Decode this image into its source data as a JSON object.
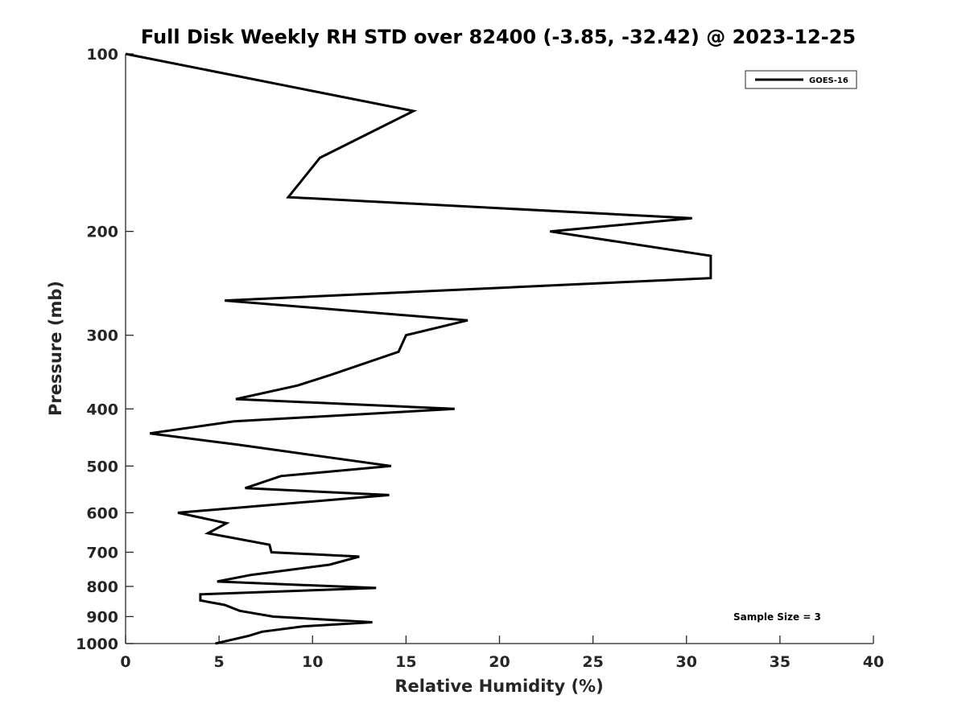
{
  "chart_data": {
    "type": "line",
    "title": "Full Disk Weekly RH STD over 82400 (-3.85, -32.42) @ 2023-12-25",
    "xlabel": "Relative Humidity (%)",
    "ylabel": "Pressure (mb)",
    "xlim": [
      0,
      40
    ],
    "ylim": [
      100,
      1000
    ],
    "y_scale": "log",
    "y_reversed": true,
    "x_ticks": [
      0,
      5,
      10,
      15,
      20,
      25,
      30,
      35,
      40
    ],
    "y_ticks": [
      100,
      200,
      300,
      400,
      500,
      600,
      700,
      800,
      900,
      1000
    ],
    "grid": false,
    "legend_position": "top-right",
    "annotation": "Sample Size = 3",
    "series": [
      {
        "name": "GOES-16",
        "color": "#000000",
        "points": [
          [
            0.0,
            100
          ],
          [
            15.4,
            125
          ],
          [
            10.4,
            150
          ],
          [
            8.7,
            175
          ],
          [
            30.3,
            190
          ],
          [
            22.7,
            200
          ],
          [
            31.3,
            220
          ],
          [
            31.3,
            240
          ],
          [
            5.3,
            262
          ],
          [
            18.3,
            283
          ],
          [
            15.0,
            300
          ],
          [
            14.6,
            320
          ],
          [
            11.0,
            350
          ],
          [
            9.2,
            365
          ],
          [
            5.9,
            385
          ],
          [
            17.6,
            400
          ],
          [
            5.8,
            420
          ],
          [
            1.3,
            440
          ],
          [
            6.0,
            460
          ],
          [
            14.2,
            500
          ],
          [
            8.3,
            520
          ],
          [
            6.4,
            545
          ],
          [
            14.1,
            560
          ],
          [
            2.8,
            600
          ],
          [
            5.4,
            625
          ],
          [
            4.4,
            650
          ],
          [
            7.7,
            680
          ],
          [
            7.8,
            700
          ],
          [
            12.5,
            712
          ],
          [
            10.9,
            735
          ],
          [
            6.7,
            765
          ],
          [
            4.9,
            785
          ],
          [
            13.4,
            805
          ],
          [
            4.0,
            825
          ],
          [
            4.0,
            845
          ],
          [
            5.3,
            860
          ],
          [
            6.1,
            880
          ],
          [
            7.9,
            900
          ],
          [
            13.2,
            920
          ],
          [
            9.5,
            935
          ],
          [
            7.3,
            955
          ],
          [
            6.6,
            970
          ],
          [
            4.8,
            1000
          ]
        ]
      }
    ]
  }
}
